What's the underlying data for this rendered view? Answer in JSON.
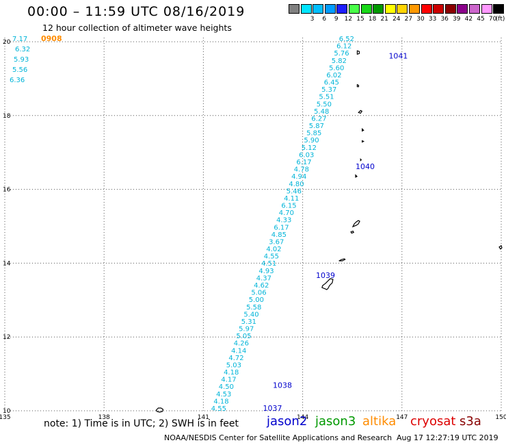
{
  "header": {
    "title": "00:00 – 11:59 UTC 08/16/2019",
    "subtitle": "12 hour collection of altimeter wave heights"
  },
  "legend": {
    "unit": "(ft)",
    "bins": [
      {
        "label": "",
        "color": "#808080"
      },
      {
        "label": "3",
        "color": "#00e5ff"
      },
      {
        "label": "6",
        "color": "#00bfff"
      },
      {
        "label": "9",
        "color": "#009cff"
      },
      {
        "label": "12",
        "color": "#1e1eff"
      },
      {
        "label": "15",
        "color": "#48ff48"
      },
      {
        "label": "18",
        "color": "#18d818"
      },
      {
        "label": "21",
        "color": "#009900"
      },
      {
        "label": "24",
        "color": "#ffff00"
      },
      {
        "label": "27",
        "color": "#ffd400"
      },
      {
        "label": "30",
        "color": "#ff9900"
      },
      {
        "label": "33",
        "color": "#ff0000"
      },
      {
        "label": "36",
        "color": "#cc0000"
      },
      {
        "label": "39",
        "color": "#8b0000"
      },
      {
        "label": "42",
        "color": "#8b008b"
      },
      {
        "label": "45",
        "color": "#cc66cc"
      },
      {
        "label": "70",
        "color": "#ff99ff"
      },
      {
        "label": "",
        "color": "#000000"
      }
    ]
  },
  "map": {
    "lon_range": [
      135,
      150
    ],
    "lat_range": [
      10,
      20
    ],
    "lon_ticks": [
      "135",
      "138",
      "141",
      "144",
      "147",
      "150"
    ],
    "lat_ticks": [
      "10",
      "12",
      "14",
      "16",
      "18",
      "20"
    ],
    "grid": "dotted",
    "swh_color": "#00b4d8",
    "time_color": "#0000cc",
    "time_color_altika": "#ff8c00",
    "pass_west": {
      "time_label": "0908",
      "values": [
        "7.17",
        "6.32",
        "5.93",
        "5.56",
        "6.36"
      ]
    },
    "pass_main": {
      "values": [
        "6.52",
        "6.12",
        "5.76",
        "5.82",
        "5.60",
        "6.02",
        "6.45",
        "5.37",
        "5.51",
        "5.50",
        "5.48",
        "6.27",
        "5.87",
        "5.85",
        "5.90",
        "5.12",
        "6.03",
        "6.17",
        "4.78",
        "4.94",
        "4.80",
        "5.46",
        "4.11",
        "6.15",
        "4.70",
        "4.33",
        "6.17",
        "4.85",
        "3.67",
        "4.02",
        "4.55",
        "4.51",
        "4.93",
        "4.37",
        "4.62",
        "5.06",
        "5.00",
        "5.58",
        "5.40",
        "5.31",
        "5.97",
        "5.05",
        "4.26",
        "4.14",
        "4.72",
        "5.03",
        "4.18",
        "4.17",
        "4.50",
        "4.53",
        "4.18",
        "4.55"
      ],
      "time_labels": [
        {
          "text": "1041",
          "lon": 146.6,
          "lat": 19.55
        },
        {
          "text": "1040",
          "lon": 145.6,
          "lat": 16.55
        },
        {
          "text": "1039",
          "lon": 144.4,
          "lat": 13.6
        },
        {
          "text": "1038",
          "lon": 143.1,
          "lat": 10.62
        },
        {
          "text": "1037",
          "lon": 142.8,
          "lat": 10.0
        }
      ]
    }
  },
  "footer": {
    "note": "note: 1) Time is in UTC; 2) SWH is in feet",
    "satellites": [
      {
        "name": "jason2",
        "color": "#0000cc"
      },
      {
        "name": "jason3",
        "color": "#009900"
      },
      {
        "name": "altika",
        "color": "#ff8c00"
      },
      {
        "name": "cryosat",
        "color": "#dd0000"
      },
      {
        "name": "s3a",
        "color": "#880000"
      }
    ],
    "org": "NOAA/NESDIS Center for Satellite Applications and Research",
    "timestamp": "Aug 17 12:27:19 UTC 2019"
  }
}
